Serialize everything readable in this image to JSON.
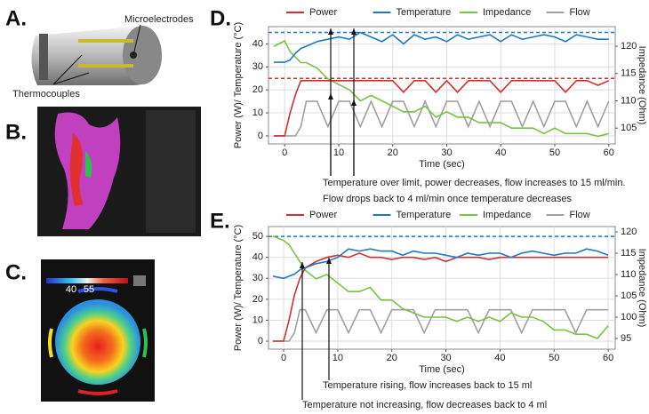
{
  "panels": {
    "a": {
      "label": "A.",
      "annotations": [
        "Microelectrodes",
        "Thermocouples"
      ]
    },
    "b": {
      "label": "B."
    },
    "c": {
      "label": "C.",
      "scale_labels": [
        40,
        55
      ]
    }
  },
  "chart_data": [
    {
      "type": "line",
      "label": "D.",
      "xlabel": "Time (sec)",
      "ylabel": "Power (W)/ Temperature (°C)",
      "y2label": "Impedance (Ohm)",
      "annotations": [
        "Temperature over limit, power decreases, flow increases to 15 ml/min.",
        "Flow drops back to 4 ml/min once temperature decreases"
      ],
      "x": [
        -2,
        0,
        1,
        2,
        3,
        4,
        6,
        8,
        10,
        12,
        14,
        16,
        18,
        20,
        22,
        24,
        26,
        28,
        30,
        32,
        34,
        36,
        38,
        40,
        42,
        44,
        46,
        48,
        50,
        52,
        54,
        56,
        58,
        60
      ],
      "series": [
        {
          "name": "Power",
          "color": "#d03030",
          "values": [
            0,
            0,
            10,
            18,
            24,
            24,
            24,
            24,
            24,
            24,
            24,
            24,
            24,
            24,
            19,
            24,
            24,
            19,
            24,
            19,
            24,
            24,
            24,
            19,
            24,
            24,
            24,
            24,
            24,
            19,
            24,
            24,
            22,
            24
          ]
        },
        {
          "name": "Temperature",
          "color": "#1f77c4",
          "values": [
            32,
            32,
            33,
            36,
            38,
            39,
            41,
            42,
            43,
            42,
            45,
            43,
            41,
            44,
            40,
            44,
            42,
            43,
            41,
            44,
            42,
            43,
            44,
            41,
            44,
            42,
            43,
            44,
            43,
            41,
            44,
            43,
            42,
            42
          ]
        },
        {
          "name": "Impedance",
          "color": "#7cc242",
          "axis": "y2",
          "values": [
            120,
            121,
            119,
            118,
            117,
            117,
            116,
            114,
            113,
            112,
            110,
            111,
            110,
            109,
            108,
            108,
            109,
            107,
            108,
            107,
            107,
            106,
            106,
            106,
            105,
            105,
            105,
            104,
            105,
            104,
            104,
            104,
            103.5,
            104
          ]
        },
        {
          "name": "Flow",
          "color": "#a0a0a0",
          "values": [
            0,
            0,
            0,
            0,
            4,
            15,
            15,
            4,
            15,
            15,
            4,
            15,
            4,
            15,
            15,
            4,
            15,
            4,
            15,
            15,
            4,
            15,
            4,
            15,
            15,
            4,
            15,
            4,
            15,
            15,
            4,
            15,
            4,
            15
          ]
        }
      ],
      "reference_lines": [
        {
          "value": 45,
          "color": "#1f77c4"
        },
        {
          "value": 25,
          "color": "#d03030"
        }
      ],
      "xlim": [
        -3,
        61.2
      ],
      "xticks": [
        0,
        10,
        20,
        30,
        40,
        50,
        60
      ],
      "ylim": [
        -3.5,
        47.5
      ],
      "yticks": [
        0,
        10,
        20,
        30,
        40
      ],
      "y2lim": [
        102.1,
        123.6
      ],
      "y2ticks": [
        105,
        110,
        115,
        120
      ],
      "grid": true,
      "legend": "top"
    },
    {
      "type": "line",
      "label": "E.",
      "xlabel": "Time (sec)",
      "ylabel": "Power (W)/ Temperature (°C)",
      "y2label": "Impedance (Ohm)",
      "annotations": [
        "Temperature rising, flow increases back to 15 ml",
        "Temperature not increasing, flow decreases back to 4 ml"
      ],
      "x": [
        -2,
        0,
        1,
        2,
        3,
        4,
        6,
        8,
        10,
        12,
        14,
        16,
        18,
        20,
        22,
        24,
        26,
        28,
        30,
        32,
        34,
        36,
        38,
        40,
        42,
        44,
        46,
        48,
        50,
        52,
        54,
        56,
        58,
        60
      ],
      "series": [
        {
          "name": "Power",
          "color": "#d03030",
          "values": [
            0,
            0,
            10,
            22,
            30,
            35,
            38,
            40,
            41,
            40,
            42,
            40,
            40,
            39,
            40,
            40,
            39,
            40,
            38,
            40,
            40,
            40,
            39,
            40,
            40,
            40,
            40,
            40,
            40,
            40,
            40,
            40,
            40,
            40
          ]
        },
        {
          "name": "Temperature",
          "color": "#1f77c4",
          "values": [
            31,
            30,
            31,
            32,
            34,
            35,
            37,
            38,
            40,
            44,
            43,
            44,
            43,
            43,
            41,
            43,
            42,
            42,
            41,
            40,
            42,
            41,
            42,
            42,
            40,
            42,
            43,
            42,
            41,
            42,
            42,
            44,
            43,
            41
          ]
        },
        {
          "name": "Impedance",
          "color": "#7cc242",
          "axis": "y2",
          "values": [
            119,
            118,
            117,
            115,
            113,
            111,
            109,
            110,
            108,
            106,
            106,
            107,
            104,
            104,
            102,
            101,
            100,
            100,
            100,
            99,
            100,
            99,
            100,
            99,
            101,
            100,
            100,
            99,
            97,
            97,
            96,
            96,
            95,
            98
          ]
        },
        {
          "name": "Flow",
          "color": "#a0a0a0",
          "values": [
            0,
            0,
            0,
            4,
            15,
            15,
            4,
            15,
            15,
            4,
            15,
            15,
            4,
            15,
            15,
            15,
            4,
            15,
            15,
            15,
            15,
            4,
            15,
            15,
            15,
            4,
            15,
            15,
            15,
            15,
            4,
            15,
            15,
            15
          ]
        }
      ],
      "reference_lines": [
        {
          "value": 50,
          "color": "#1f77c4"
        }
      ],
      "xlim": [
        -2.8,
        61.3
      ],
      "xticks": [
        0,
        10,
        20,
        30,
        40,
        50,
        60
      ],
      "ylim": [
        -3.8,
        54.7
      ],
      "yticks": [
        0,
        10,
        20,
        30,
        40,
        50
      ],
      "y2lim": [
        92.5,
        121.25
      ],
      "y2ticks": [
        95,
        100,
        105,
        110,
        115,
        120
      ],
      "grid": true,
      "legend": "top"
    }
  ]
}
